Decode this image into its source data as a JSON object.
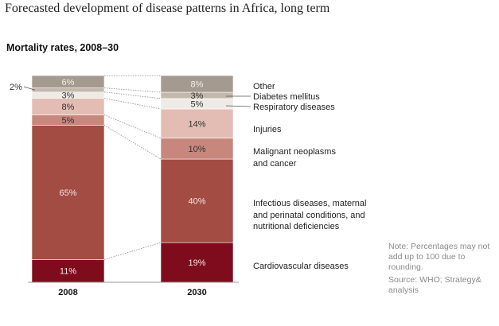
{
  "title": "Forecasted development of disease patterns in Africa, long term",
  "subtitle": "Mortality rates, 2008–30",
  "note": "Note: Percentages may not add up to 100 due to rounding.",
  "source": "Source: WHO; Strategy& analysis",
  "chart_data": {
    "type": "bar",
    "stacked": true,
    "categories": [
      "2008",
      "2030"
    ],
    "series": [
      {
        "name": "Cardiovascular diseases",
        "values": [
          11,
          19
        ],
        "color": "#7f0c1c",
        "labels": [
          "11%",
          "19%"
        ]
      },
      {
        "name": "Infectious diseases, maternal and perinatal conditions, and nutritional deficiencies",
        "values": [
          65,
          40
        ],
        "color": "#a24c43",
        "labels": [
          "65%",
          "40%"
        ]
      },
      {
        "name": "Malignant neoplasms and cancer",
        "values": [
          5,
          10
        ],
        "color": "#c8877c",
        "labels": [
          "5%",
          "10%"
        ]
      },
      {
        "name": "Injuries",
        "values": [
          8,
          14
        ],
        "color": "#e3bcb3",
        "labels": [
          "8%",
          "14%"
        ]
      },
      {
        "name": "Respiratory diseases",
        "values": [
          3,
          5
        ],
        "color": "#eeeae6",
        "labels": [
          "3%",
          "5%"
        ]
      },
      {
        "name": "Diabetes mellitus",
        "values": [
          2,
          3
        ],
        "color": "#c3b8ad",
        "labels": [
          "2%",
          "3%"
        ]
      },
      {
        "name": "Other",
        "values": [
          6,
          8
        ],
        "color": "#a59a8f",
        "labels": [
          "6%",
          "8%"
        ]
      }
    ],
    "legend_lines": [
      [
        "Cardiovascular diseases"
      ],
      [
        "Infectious diseases, maternal",
        "and perinatal conditions, and",
        "nutritional deficiencies"
      ],
      [
        "Malignant neoplasms",
        "and cancer"
      ],
      [
        "Injuries"
      ],
      [
        "Respiratory diseases"
      ],
      [
        "Diabetes mellitus"
      ],
      [
        "Other"
      ]
    ]
  }
}
